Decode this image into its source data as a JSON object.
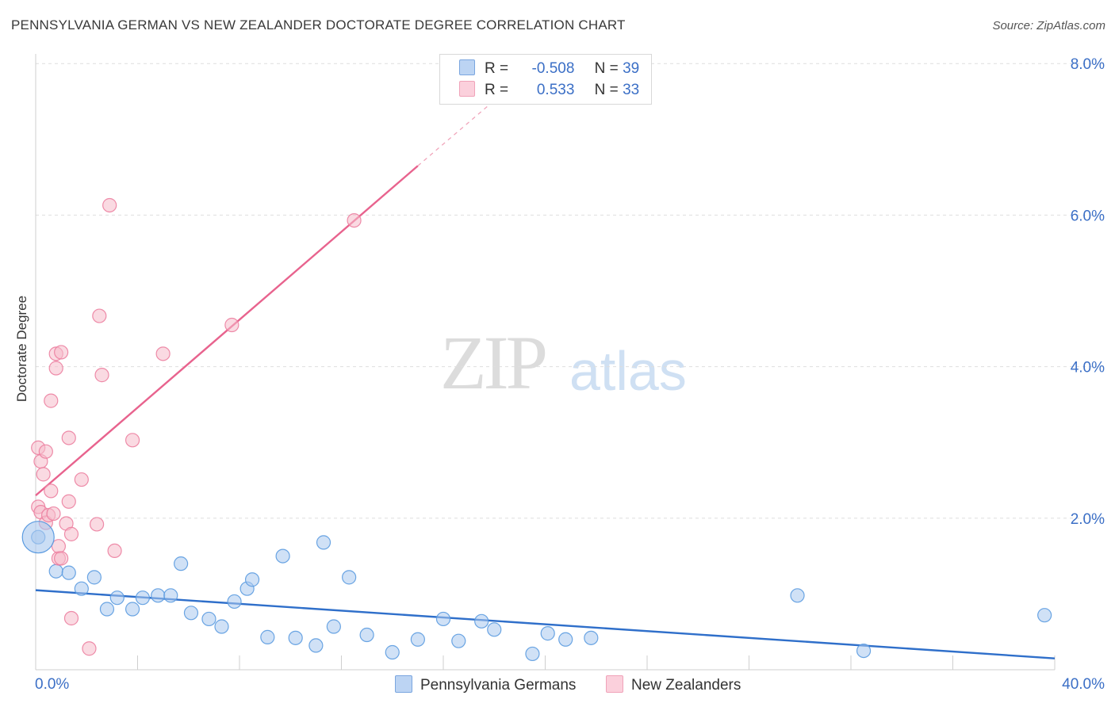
{
  "header": {
    "title": "PENNSYLVANIA GERMAN VS NEW ZEALANDER DOCTORATE DEGREE CORRELATION CHART",
    "source": "Source: ZipAtlas.com"
  },
  "watermark": {
    "zip": "ZIP",
    "atlas": "atlas"
  },
  "stats": {
    "rows": [
      {
        "r_label": "R =",
        "r_value": "-0.508",
        "n_label": "N =",
        "n_value": "39",
        "color": "#a9c8ef"
      },
      {
        "r_label": "R =",
        "r_value": "0.533",
        "n_label": "N =",
        "n_value": "33",
        "color": "#f6bccb"
      }
    ]
  },
  "legend": {
    "items": [
      {
        "label": "Pennsylvania Germans",
        "color": "#a9c8ef"
      },
      {
        "label": "New Zealanders",
        "color": "#f6bccb"
      }
    ]
  },
  "chart_data": {
    "type": "scatter",
    "title": "PENNSYLVANIA GERMAN VS NEW ZEALANDER DOCTORATE DEGREE CORRELATION CHART",
    "xlabel": "",
    "ylabel": "Doctorate Degree",
    "xlim": [
      0,
      40
    ],
    "ylim": [
      0,
      8
    ],
    "x_tick_labels": [
      "0.0%",
      "40.0%"
    ],
    "y_ticks": [
      2,
      4,
      6,
      8
    ],
    "y_tick_labels": [
      "2.0%",
      "4.0%",
      "6.0%",
      "8.0%"
    ],
    "grid": true,
    "series": [
      {
        "name": "Pennsylvania Germans",
        "color": "#5b9be0",
        "fill": "#a9c8ef",
        "trend": {
          "x": [
            0,
            40
          ],
          "y": [
            1.05,
            0.15
          ],
          "color": "#2f6fca"
        },
        "points": [
          [
            0.1,
            1.75
          ],
          [
            0.8,
            1.3
          ],
          [
            1.3,
            1.28
          ],
          [
            1.8,
            1.07
          ],
          [
            2.3,
            1.22
          ],
          [
            2.8,
            0.8
          ],
          [
            3.2,
            0.95
          ],
          [
            3.8,
            0.8
          ],
          [
            4.2,
            0.95
          ],
          [
            4.8,
            0.98
          ],
          [
            5.3,
            0.98
          ],
          [
            5.7,
            1.4
          ],
          [
            6.1,
            0.75
          ],
          [
            6.8,
            0.67
          ],
          [
            7.3,
            0.57
          ],
          [
            7.8,
            0.9
          ],
          [
            8.3,
            1.07
          ],
          [
            8.5,
            1.19
          ],
          [
            9.1,
            0.43
          ],
          [
            9.7,
            1.5
          ],
          [
            10.2,
            0.42
          ],
          [
            11.0,
            0.32
          ],
          [
            11.3,
            1.68
          ],
          [
            11.7,
            0.57
          ],
          [
            12.3,
            1.22
          ],
          [
            13.0,
            0.46
          ],
          [
            14.0,
            0.23
          ],
          [
            15.0,
            0.4
          ],
          [
            16.0,
            0.67
          ],
          [
            16.6,
            0.38
          ],
          [
            17.5,
            0.64
          ],
          [
            18.0,
            0.53
          ],
          [
            19.5,
            0.21
          ],
          [
            20.1,
            0.48
          ],
          [
            20.8,
            0.4
          ],
          [
            21.8,
            0.42
          ],
          [
            29.9,
            0.98
          ],
          [
            32.5,
            0.25
          ],
          [
            39.6,
            0.72
          ]
        ]
      },
      {
        "name": "New Zealanders",
        "color": "#ec7fa0",
        "fill": "#f6bccb",
        "trend": {
          "x": [
            0,
            15
          ],
          "y": [
            2.3,
            6.65
          ],
          "color": "#e8638e"
        },
        "trend_dashed": {
          "x": [
            15,
            19
          ],
          "y": [
            6.65,
            7.8
          ]
        },
        "points": [
          [
            0.1,
            2.93
          ],
          [
            0.1,
            2.15
          ],
          [
            0.2,
            2.75
          ],
          [
            0.2,
            2.08
          ],
          [
            0.3,
            2.58
          ],
          [
            0.4,
            1.94
          ],
          [
            0.4,
            2.88
          ],
          [
            0.5,
            2.04
          ],
          [
            0.6,
            3.55
          ],
          [
            0.6,
            2.36
          ],
          [
            0.7,
            2.06
          ],
          [
            0.8,
            4.17
          ],
          [
            0.8,
            3.98
          ],
          [
            0.9,
            1.47
          ],
          [
            0.9,
            1.63
          ],
          [
            1.0,
            1.47
          ],
          [
            1.0,
            4.19
          ],
          [
            1.2,
            1.93
          ],
          [
            1.3,
            3.06
          ],
          [
            1.3,
            2.22
          ],
          [
            1.4,
            1.79
          ],
          [
            1.4,
            0.68
          ],
          [
            1.8,
            2.51
          ],
          [
            2.1,
            0.28
          ],
          [
            2.4,
            1.92
          ],
          [
            2.5,
            4.67
          ],
          [
            2.6,
            3.89
          ],
          [
            2.9,
            6.13
          ],
          [
            3.1,
            1.57
          ],
          [
            3.8,
            3.03
          ],
          [
            5.0,
            4.17
          ],
          [
            7.7,
            4.55
          ],
          [
            12.5,
            5.93
          ]
        ]
      }
    ]
  }
}
